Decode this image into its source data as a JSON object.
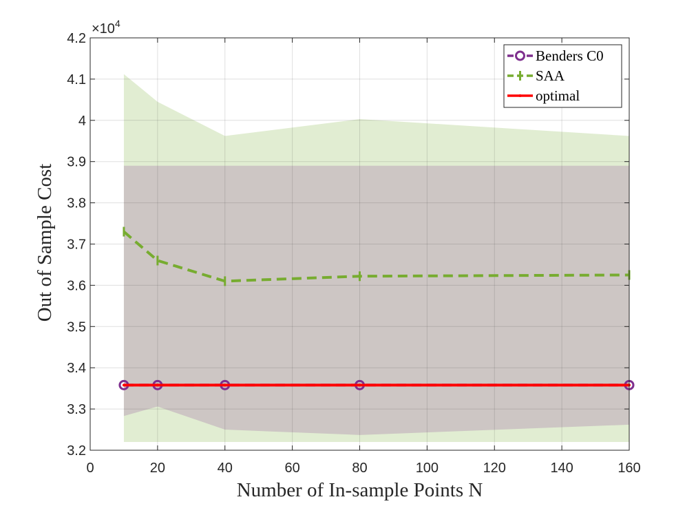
{
  "chart_data": {
    "type": "line",
    "x": [
      10,
      20,
      40,
      80,
      160
    ],
    "xlabel": "Number of In-sample Points N",
    "ylabel": "Out of Sample Cost",
    "xlim": [
      0,
      160
    ],
    "ylim": [
      3.2,
      4.2
    ],
    "xticks": [
      0,
      20,
      40,
      60,
      80,
      100,
      120,
      140,
      160
    ],
    "yticks": [
      3.2,
      3.3,
      3.4,
      3.5,
      3.6,
      3.7,
      3.8,
      3.9,
      4.0,
      4.1,
      4.2
    ],
    "xtick_labels": [
      "0",
      "20",
      "40",
      "60",
      "80",
      "100",
      "120",
      "140",
      "160"
    ],
    "ytick_labels": [
      "3.2",
      "3.3",
      "3.4",
      "3.5",
      "3.6",
      "3.7",
      "3.8",
      "3.9",
      "4",
      "4.1",
      "4.2"
    ],
    "y_scale_exponent": {
      "base": "×10",
      "power": "4"
    },
    "grid": true,
    "legend_position": "top-right",
    "series": [
      {
        "name": "Benders C0",
        "values": [
          3.358,
          3.358,
          3.358,
          3.358,
          3.358
        ],
        "color": "#7E2F8E",
        "line_style": "dashed",
        "marker": "circle"
      },
      {
        "name": "SAA",
        "values": [
          3.73,
          3.66,
          3.61,
          3.622,
          3.625
        ],
        "color": "#77AC30",
        "line_style": "dashed",
        "marker": "vertical-bar"
      },
      {
        "name": "optimal",
        "values": [
          3.358,
          3.358,
          3.358,
          3.358,
          3.358
        ],
        "color": "#FF0000",
        "line_style": "solid",
        "marker": "point"
      }
    ],
    "bands": [
      {
        "series": "SAA",
        "color": "#77AC30",
        "opacity": 0.22,
        "upper": [
          4.112,
          4.045,
          3.962,
          4.003,
          3.962
        ],
        "lower": [
          3.22,
          3.22,
          3.22,
          3.22,
          3.22
        ]
      },
      {
        "series": "Benders C0",
        "color": "#7E2F8E",
        "opacity": 0.2,
        "upper": [
          3.89,
          3.89,
          3.89,
          3.89,
          3.89
        ],
        "lower": [
          3.283,
          3.306,
          3.25,
          3.237,
          3.262
        ]
      }
    ]
  }
}
